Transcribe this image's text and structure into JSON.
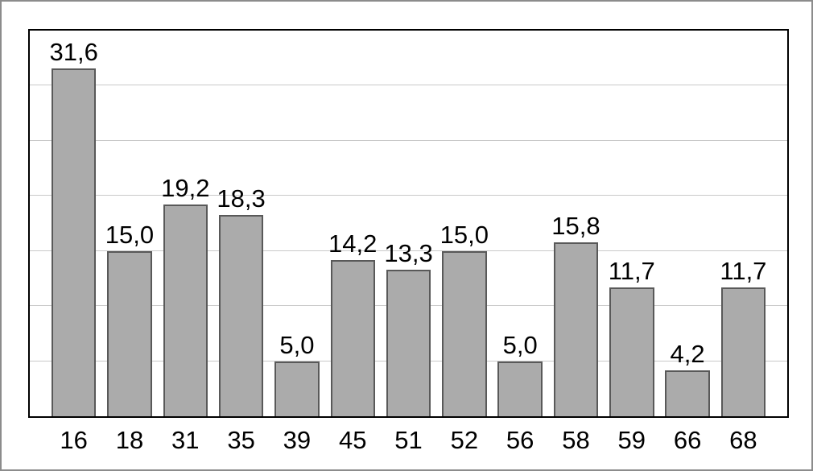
{
  "chart_data": {
    "type": "bar",
    "title": "",
    "xlabel": "",
    "ylabel": "",
    "categories": [
      "16",
      "18",
      "31",
      "35",
      "39",
      "45",
      "51",
      "52",
      "56",
      "58",
      "59",
      "66",
      "68"
    ],
    "values": [
      31.6,
      15.0,
      19.2,
      18.3,
      5.0,
      14.2,
      13.3,
      15.0,
      5.0,
      15.8,
      11.7,
      4.2,
      11.7
    ],
    "value_labels": [
      "31,6",
      "15,0",
      "19,2",
      "18,3",
      "5,0",
      "14,2",
      "13,3",
      "15,0",
      "5,0",
      "15,8",
      "11,7",
      "4,2",
      "11,7"
    ],
    "ylim": [
      0,
      35
    ],
    "grid_step": 5,
    "grid": true,
    "legend": false,
    "decimal_separator": ",",
    "colors": {
      "bar_fill": "#ababab",
      "bar_border": "#595959",
      "gridline": "#c9c9c9",
      "plot_border": "#000000",
      "frame_border": "#8c8c8c",
      "background": "#ffffff",
      "text": "#000000"
    }
  }
}
